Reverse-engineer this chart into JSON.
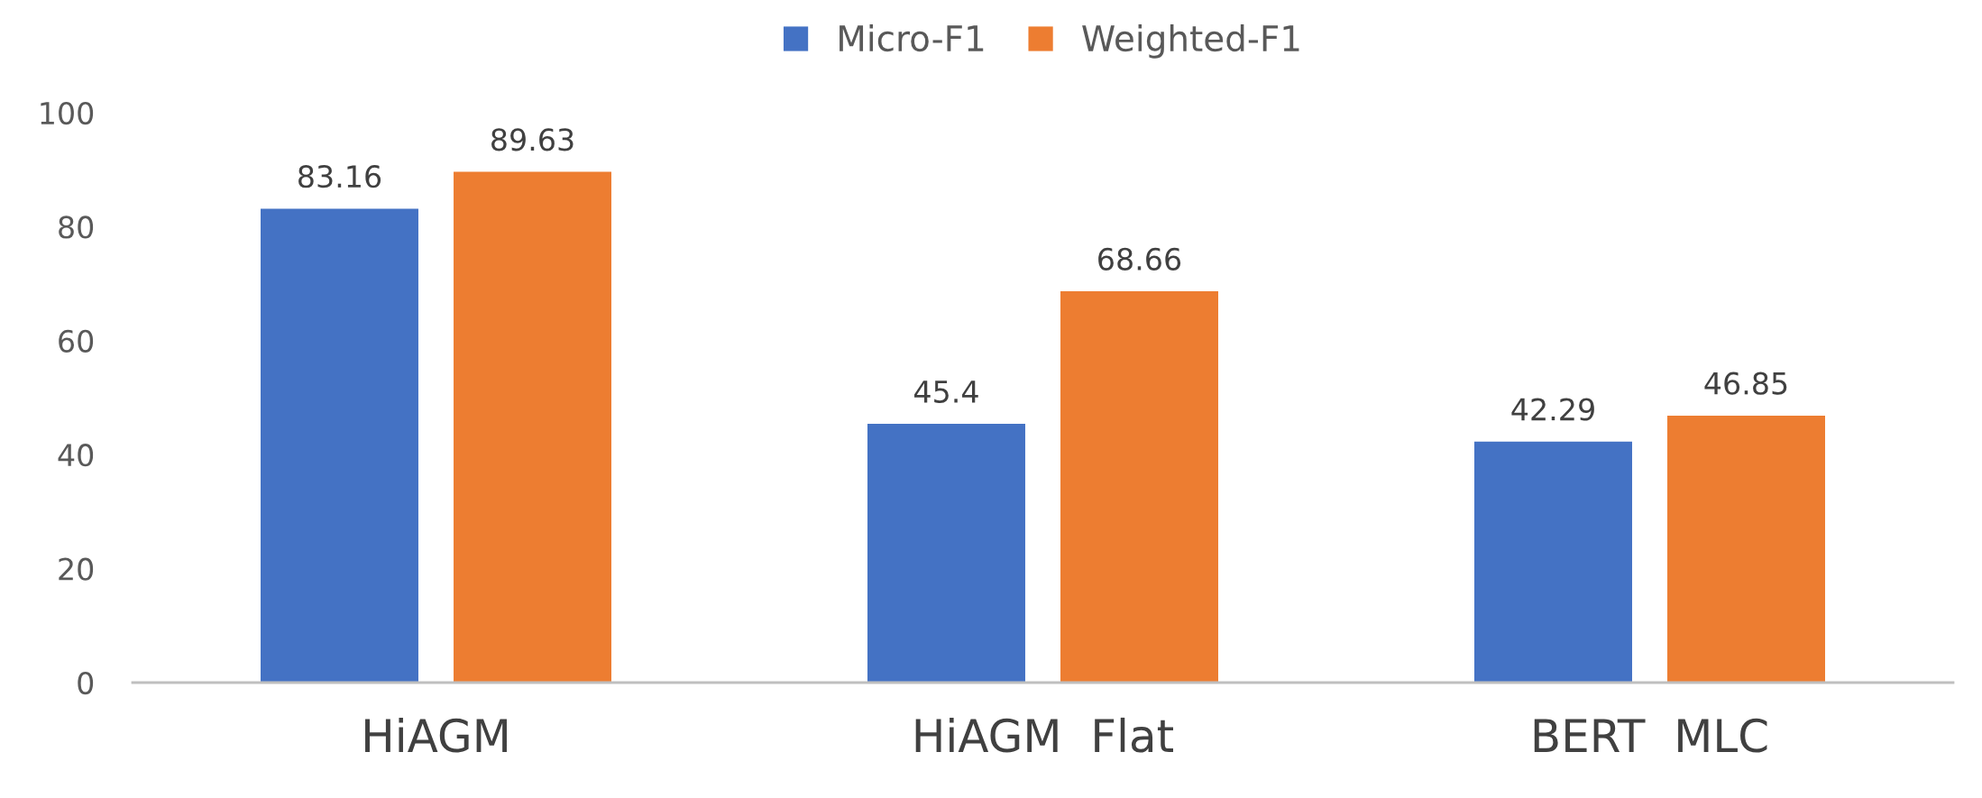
{
  "chart_data": {
    "type": "bar",
    "categories": [
      "HiAGM",
      "HiAGM  Flat",
      "BERT  MLC"
    ],
    "series": [
      {
        "name": "Micro-F1",
        "color": "#4472c4",
        "values": [
          83.16,
          45.4,
          42.29
        ]
      },
      {
        "name": "Weighted-F1",
        "color": "#ed7d31",
        "values": [
          89.63,
          68.66,
          46.85
        ]
      }
    ],
    "ylim": [
      0,
      100
    ],
    "yticks": [
      0,
      20,
      40,
      60,
      80,
      100
    ],
    "data_labels": true,
    "grid": false,
    "legend": "top"
  }
}
